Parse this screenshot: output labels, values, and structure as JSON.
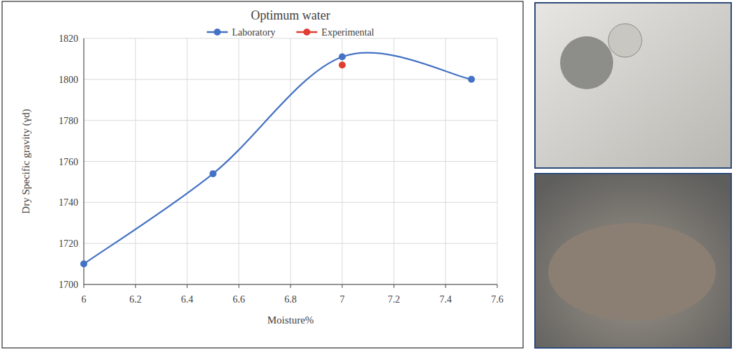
{
  "chart_data": {
    "type": "line",
    "title": "Optimum water",
    "x_label": "Moisture%",
    "y_label": "Dry Specific gravity (γd)",
    "series": [
      {
        "name": "Laboratory",
        "color": "#4472c4",
        "marker": "circle",
        "line_style": "solid",
        "x": [
          6,
          6.5,
          7,
          7.5
        ],
        "values": [
          1710,
          1754,
          1811,
          1800
        ]
      },
      {
        "name": "Experimental",
        "color": "#e03c31",
        "marker": "circle",
        "line_style": "solid",
        "x": [
          7
        ],
        "values": [
          1807
        ]
      }
    ],
    "xlim": [
      6,
      7.6
    ],
    "xticks": [
      6,
      6.2,
      6.4,
      6.6,
      6.8,
      7,
      7.2,
      7.4,
      7.6
    ],
    "ylim": [
      1700,
      1820
    ],
    "yticks": [
      1700,
      1720,
      1740,
      1760,
      1780,
      1800,
      1820
    ],
    "grid": true,
    "legend": "top"
  }
}
